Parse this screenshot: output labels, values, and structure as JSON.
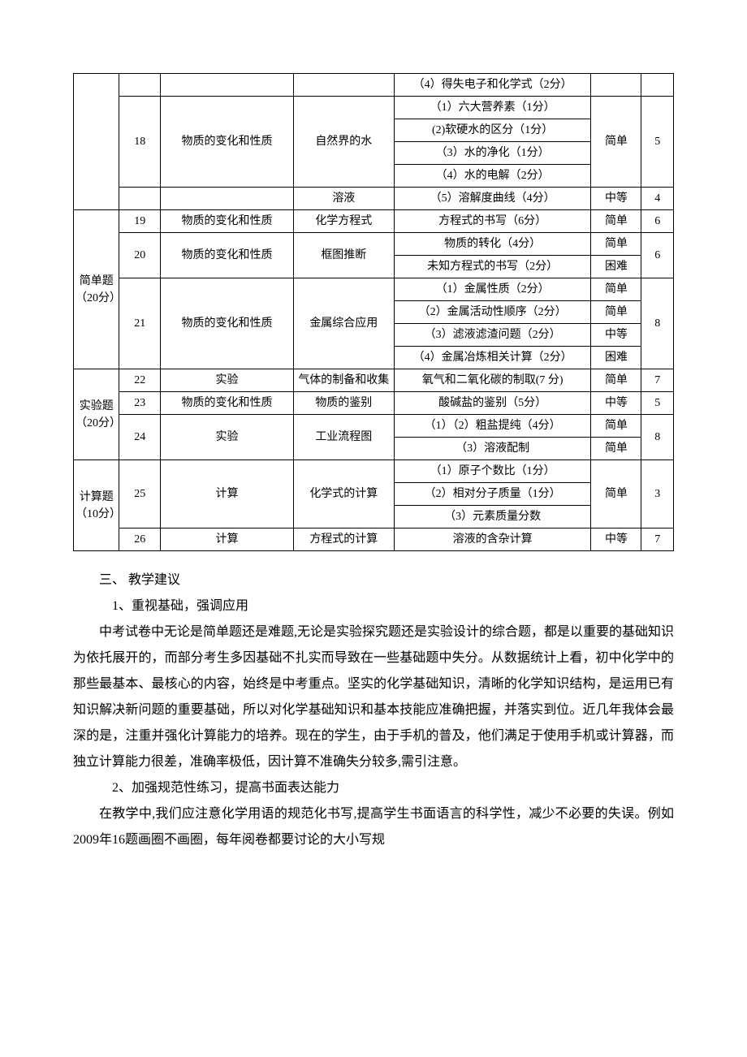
{
  "table": {
    "r0_content": "（4）得失电子和化学式（2分）",
    "r1_num": "18",
    "r1_category": "物质的变化和性质",
    "r1_topic": "自然界的水",
    "r1_content": "（1）六大营养素（1分）",
    "r1_difficulty": "简单",
    "r1_points": "5",
    "r2_content": "(2)软硬水的区分（1分）",
    "r3_content": "（3）水的净化（1分）",
    "r4_content": "（4）水的电解（2分）",
    "r5_topic": "溶液",
    "r5_content": "（5）溶解度曲线（4分）",
    "r5_difficulty": "中等",
    "r5_points": "4",
    "r6_section": "简单题（20分）",
    "r6_num": "19",
    "r6_category": "物质的变化和性质",
    "r6_topic": "化学方程式",
    "r6_content": "方程式的书写（6分）",
    "r6_difficulty": "简单",
    "r6_points": "6",
    "r7_num": "20",
    "r7_category": "物质的变化和性质",
    "r7_topic": "框图推断",
    "r7_content": "物质的转化（4分）",
    "r7_difficulty": "简单",
    "r7_points": "6",
    "r8_content": "未知方程式的书写（2分）",
    "r8_difficulty": "困难",
    "r9_num": "21",
    "r9_category": "物质的变化和性质",
    "r9_topic": "金属综合应用",
    "r9_content": "（1）金属性质（2分）",
    "r9_difficulty": "简单",
    "r9_points": "8",
    "r10_content": "（2）金属活动性顺序（2分）",
    "r10_difficulty": "简单",
    "r11_content": "（3）滤液滤渣问题（2分）",
    "r11_difficulty": "中等",
    "r12_content": "（4）金属冶炼相关计算（2分）",
    "r12_difficulty": "困难",
    "r13_section": "实验题（20分）",
    "r13_num": "22",
    "r13_category": "实验",
    "r13_topic": "气体的制备和收集",
    "r13_content": "氧气和二氧化碳的制取(7 分)",
    "r13_difficulty": "简单",
    "r13_points": "7",
    "r14_num": "23",
    "r14_category": "物质的变化和性质",
    "r14_topic": "物质的鉴别",
    "r14_content": "酸碱盐的鉴别（5分）",
    "r14_difficulty": "中等",
    "r14_points": "5",
    "r15_num": "24",
    "r15_category": "实验",
    "r15_topic": "工业流程图",
    "r15_content": "（1）（2）粗盐提纯（4分）",
    "r15_difficulty": "简单",
    "r15_points": "8",
    "r16_content": "（3）溶液配制",
    "r16_difficulty": "简单",
    "r17_section": "计算题（10分）",
    "r17_num": "25",
    "r17_category": "计算",
    "r17_topic": "化学式的计算",
    "r17_content": "（1）原子个数比（1分）",
    "r17_difficulty": "简单",
    "r17_points": "3",
    "r18_content": "（2）相对分子质量（1分）",
    "r19_content": "（3）元素质量分数",
    "r20_num": "26",
    "r20_category": "计算",
    "r20_topic": "方程式的计算",
    "r20_content": "溶液的含杂计算",
    "r20_difficulty": "中等",
    "r20_points": "7"
  },
  "body": {
    "section_three": "三、  教学建议",
    "sub1_title": "1、重视基础，强调应用",
    "sub1_para": "中考试卷中无论是简单题还是难题,无论是实验探究题还是实验设计的综合题，都是以重要的基础知识为依托展开的，而部分考生多因基础不扎实而导致在一些基础题中失分。从数据统计上看，初中化学中的那些最基本、最核心的内容，始终是中考重点。坚实的化学基础知识，清晰的化学知识结构，是运用已有知识解决新问题的重要基础，所以对化学基础知识和基本技能应准确把握，并落实到位。近几年我体会最深的是，注重并强化计算能力的培养。现在的学生，由于手机的普及，他们满足于使用手机或计算器，而独立计算能力很差，准确率极低，因计算不准确失分较多,需引注意。",
    "sub2_title": "2、加强规范性练习，提高书面表达能力",
    "sub2_para": "在教学中,我们应注意化学用语的规范化书写,提高学生书面语言的科学性，减少不必要的失误。例如2009年16题画圈不画圈，每年阅卷都要讨论的大小写规"
  }
}
